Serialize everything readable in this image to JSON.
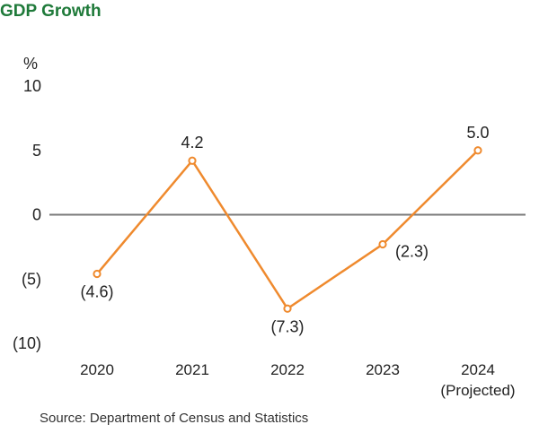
{
  "chart_data": {
    "type": "line",
    "title": "GDP Growth",
    "ylabel": "%",
    "xlabel": "",
    "categories": [
      "2020",
      "2021",
      "2022",
      "2023",
      "2024"
    ],
    "category_sublabels": [
      "",
      "",
      "",
      "",
      "(Projected)"
    ],
    "series": [
      {
        "values": [
          -4.6,
          4.2,
          -7.3,
          -2.3,
          5.0
        ]
      }
    ],
    "data_labels": [
      "(4.6)",
      "4.2",
      "(7.3)",
      "(2.3)",
      "5.0"
    ],
    "label_positions": [
      "below",
      "above",
      "below",
      "right",
      "above"
    ],
    "ylim": [
      -10,
      10
    ],
    "yticks": [
      10,
      5,
      0,
      -5,
      -10
    ],
    "ytick_labels": [
      "10",
      "5",
      "0",
      "(5)",
      "(10)"
    ],
    "source": "Source: Department of Census and Statistics",
    "colors": {
      "line": "#ef8a2e",
      "zero_line": "#7a7a7a",
      "title": "#1f7a3a"
    },
    "grid": false,
    "legend": "none"
  }
}
